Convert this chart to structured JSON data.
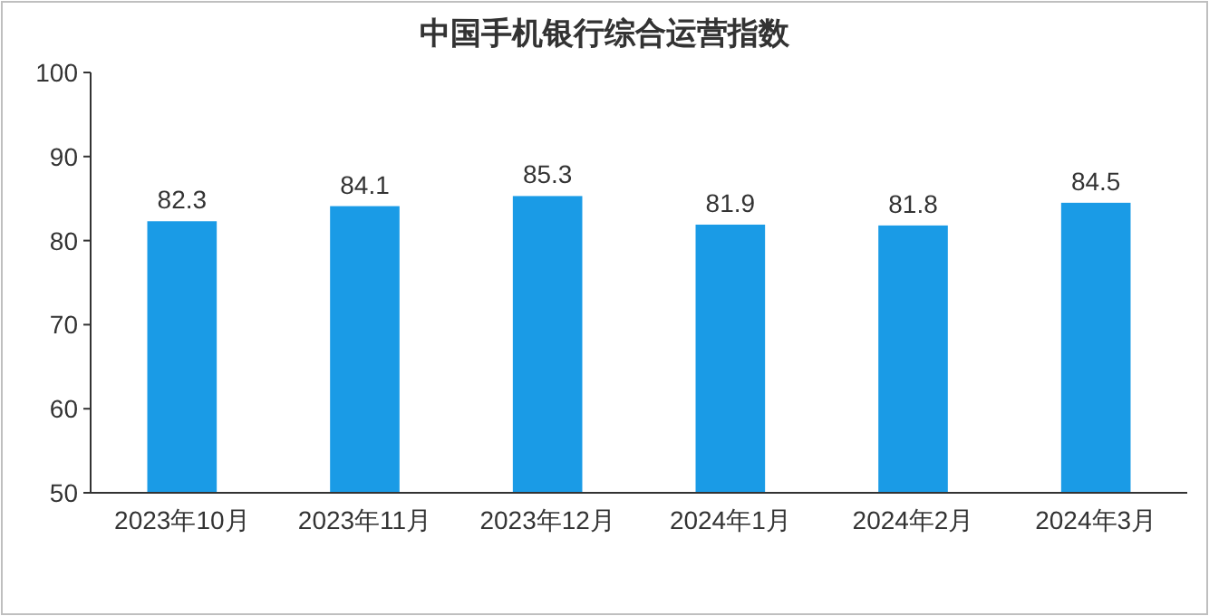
{
  "chart_data": {
    "type": "bar",
    "title": "中国手机银行综合运营指数",
    "categories": [
      "2023年10月",
      "2023年11月",
      "2023年12月",
      "2024年1月",
      "2024年2月",
      "2024年3月"
    ],
    "values": [
      82.3,
      84.1,
      85.3,
      81.9,
      81.8,
      84.5
    ],
    "color": "#1a9be6",
    "ylim": [
      50,
      100
    ],
    "yticks": [
      50,
      60,
      70,
      80,
      90,
      100
    ],
    "data_labels": true,
    "grid": false
  }
}
